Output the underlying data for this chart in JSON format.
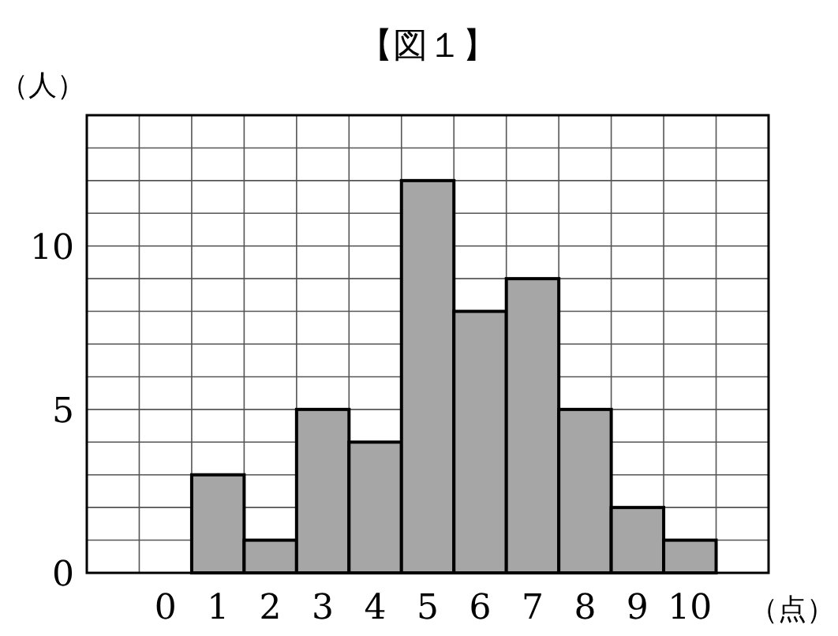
{
  "chart_data": {
    "type": "bar",
    "title": "【図１】",
    "ylabel": "（人）",
    "xlabel": "（点）",
    "categories": [
      "0",
      "1",
      "2",
      "3",
      "4",
      "5",
      "6",
      "7",
      "8",
      "9",
      "10"
    ],
    "values": [
      0,
      3,
      1,
      5,
      4,
      12,
      8,
      9,
      5,
      2,
      1
    ],
    "color": "#a6a6a6",
    "ylim": [
      0,
      14
    ],
    "yticks": [
      0,
      {
        "value": 1,
        "label": null
      },
      {
        "value": 2,
        "label": null
      },
      {
        "value": 3,
        "label": null
      },
      {
        "value": 4,
        "label": null
      },
      5,
      {
        "value": 6,
        "label": null
      },
      {
        "value": 7,
        "label": null
      },
      {
        "value": 8,
        "label": null
      },
      {
        "value": 9,
        "label": null
      },
      10,
      {
        "value": 11,
        "label": null
      },
      {
        "value": 12,
        "label": null
      },
      {
        "value": 13,
        "label": null
      },
      {
        "value": 14,
        "label": null
      }
    ],
    "grid": true
  }
}
